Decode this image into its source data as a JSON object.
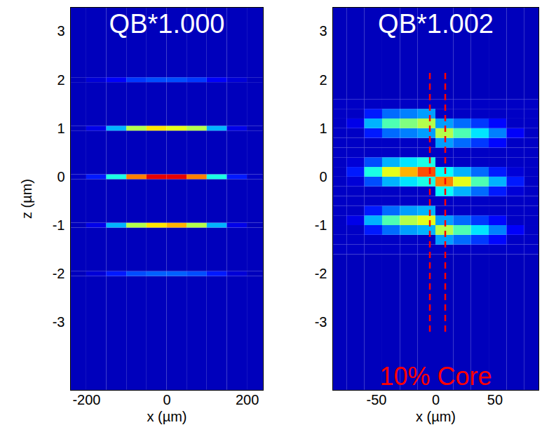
{
  "chart_data": [
    {
      "type": "heatmap",
      "title": "QB*1.000",
      "xlabel": "x (µm)",
      "ylabel": "z (µm)",
      "color": "jet",
      "xlim": [
        -240,
        240
      ],
      "xticks": [
        -200,
        0,
        200
      ],
      "ylim": [
        -4.4,
        3.5
      ],
      "yticks": [
        -3,
        -2,
        -1,
        0,
        1,
        2,
        3
      ],
      "value_range": [
        0,
        1
      ],
      "x_edges": [
        -240,
        -200,
        -150,
        -100,
        -50,
        0,
        50,
        100,
        150,
        200,
        240
      ],
      "z_edges": [
        -4.4,
        -2.05,
        -1.95,
        -1.05,
        -0.95,
        -0.05,
        0.05,
        0.95,
        1.05,
        1.95,
        2.05,
        3.5
      ],
      "values": [
        [
          0.05,
          0.05,
          0.05,
          0.05,
          0.05,
          0.05,
          0.05,
          0.05,
          0.05,
          0.05
        ],
        [
          0.05,
          0.08,
          0.15,
          0.2,
          0.22,
          0.22,
          0.2,
          0.15,
          0.08,
          0.05
        ],
        [
          0.05,
          0.05,
          0.05,
          0.05,
          0.05,
          0.05,
          0.05,
          0.05,
          0.05,
          0.05
        ],
        [
          0.05,
          0.1,
          0.3,
          0.55,
          0.65,
          0.7,
          0.55,
          0.3,
          0.1,
          0.05
        ],
        [
          0.05,
          0.05,
          0.05,
          0.05,
          0.05,
          0.05,
          0.05,
          0.05,
          0.05,
          0.05
        ],
        [
          0.06,
          0.15,
          0.4,
          0.75,
          0.9,
          0.9,
          0.75,
          0.4,
          0.15,
          0.06
        ],
        [
          0.05,
          0.05,
          0.05,
          0.05,
          0.05,
          0.05,
          0.05,
          0.05,
          0.05,
          0.05
        ],
        [
          0.05,
          0.1,
          0.3,
          0.55,
          0.65,
          0.6,
          0.55,
          0.3,
          0.1,
          0.05
        ],
        [
          0.05,
          0.05,
          0.05,
          0.05,
          0.05,
          0.05,
          0.05,
          0.05,
          0.05,
          0.05
        ],
        [
          0.05,
          0.08,
          0.12,
          0.18,
          0.2,
          0.2,
          0.18,
          0.12,
          0.08,
          0.05
        ],
        [
          0.05,
          0.05,
          0.05,
          0.05,
          0.05,
          0.05,
          0.05,
          0.05,
          0.05,
          0.05
        ]
      ]
    },
    {
      "type": "heatmap",
      "title": "QB*1.002",
      "xlabel": "x (µm)",
      "color": "jet",
      "xlim": [
        -87,
        87
      ],
      "xticks": [
        -50,
        0,
        50
      ],
      "ylim": [
        -4.4,
        3.5
      ],
      "yticks": [
        -3,
        -2,
        -1,
        0,
        1,
        2,
        3
      ],
      "value_range": [
        0,
        1
      ],
      "x_edges": [
        -87,
        -75,
        -60,
        -45,
        -30,
        -15,
        0,
        15,
        30,
        45,
        60,
        75,
        87
      ],
      "z_edges": [
        -4.4,
        -1.6,
        -1.4,
        -1.2,
        -1.0,
        -0.8,
        -0.6,
        -0.4,
        -0.2,
        0,
        0.2,
        0.4,
        0.6,
        0.8,
        1.0,
        1.2,
        1.4,
        1.6,
        3.5
      ],
      "values": [
        [
          0.05,
          0.05,
          0.05,
          0.05,
          0.05,
          0.05,
          0.05,
          0.05,
          0.05,
          0.05,
          0.05,
          0.05
        ],
        [
          0.06,
          0.06,
          0.06,
          0.06,
          0.06,
          0.06,
          0.06,
          0.06,
          0.06,
          0.06,
          0.06,
          0.06
        ],
        [
          0.06,
          0.06,
          0.06,
          0.06,
          0.06,
          0.06,
          0.28,
          0.23,
          0.18,
          0.13,
          0.06,
          0.06
        ],
        [
          0.06,
          0.06,
          0.15,
          0.23,
          0.28,
          0.3,
          0.55,
          0.45,
          0.35,
          0.25,
          0.12,
          0.06
        ],
        [
          0.06,
          0.1,
          0.3,
          0.45,
          0.55,
          0.6,
          0.28,
          0.23,
          0.18,
          0.13,
          0.06,
          0.06
        ],
        [
          0.06,
          0.06,
          0.15,
          0.23,
          0.28,
          0.3,
          0.06,
          0.06,
          0.06,
          0.06,
          0.06,
          0.06
        ],
        [
          0.06,
          0.06,
          0.06,
          0.06,
          0.06,
          0.06,
          0.06,
          0.06,
          0.06,
          0.06,
          0.06,
          0.06
        ],
        [
          0.06,
          0.06,
          0.06,
          0.06,
          0.06,
          0.06,
          0.38,
          0.3,
          0.23,
          0.15,
          0.08,
          0.06
        ],
        [
          0.06,
          0.08,
          0.2,
          0.3,
          0.35,
          0.4,
          0.75,
          0.6,
          0.45,
          0.3,
          0.15,
          0.06
        ],
        [
          0.06,
          0.15,
          0.4,
          0.6,
          0.7,
          0.8,
          0.38,
          0.3,
          0.23,
          0.15,
          0.08,
          0.06
        ],
        [
          0.06,
          0.08,
          0.2,
          0.3,
          0.35,
          0.4,
          0.06,
          0.06,
          0.06,
          0.06,
          0.06,
          0.06
        ],
        [
          0.06,
          0.06,
          0.06,
          0.06,
          0.06,
          0.06,
          0.06,
          0.06,
          0.06,
          0.06,
          0.06,
          0.06
        ],
        [
          0.06,
          0.06,
          0.06,
          0.06,
          0.06,
          0.06,
          0.28,
          0.23,
          0.18,
          0.13,
          0.06,
          0.06
        ],
        [
          0.06,
          0.06,
          0.15,
          0.23,
          0.25,
          0.28,
          0.55,
          0.45,
          0.35,
          0.25,
          0.12,
          0.06
        ],
        [
          0.06,
          0.1,
          0.3,
          0.45,
          0.5,
          0.55,
          0.28,
          0.23,
          0.18,
          0.13,
          0.06,
          0.06
        ],
        [
          0.06,
          0.06,
          0.15,
          0.23,
          0.25,
          0.28,
          0.06,
          0.06,
          0.06,
          0.06,
          0.06,
          0.06
        ],
        [
          0.06,
          0.06,
          0.06,
          0.06,
          0.06,
          0.06,
          0.06,
          0.06,
          0.06,
          0.06,
          0.06,
          0.06
        ],
        [
          0.05,
          0.05,
          0.05,
          0.05,
          0.05,
          0.05,
          0.05,
          0.05,
          0.05,
          0.05,
          0.05,
          0.05
        ]
      ],
      "annotation": {
        "text": "10% Core",
        "color": "red",
        "line_style": "dashed",
        "x": [
          -5,
          8
        ],
        "z": [
          -3.2,
          2.15
        ]
      }
    }
  ]
}
